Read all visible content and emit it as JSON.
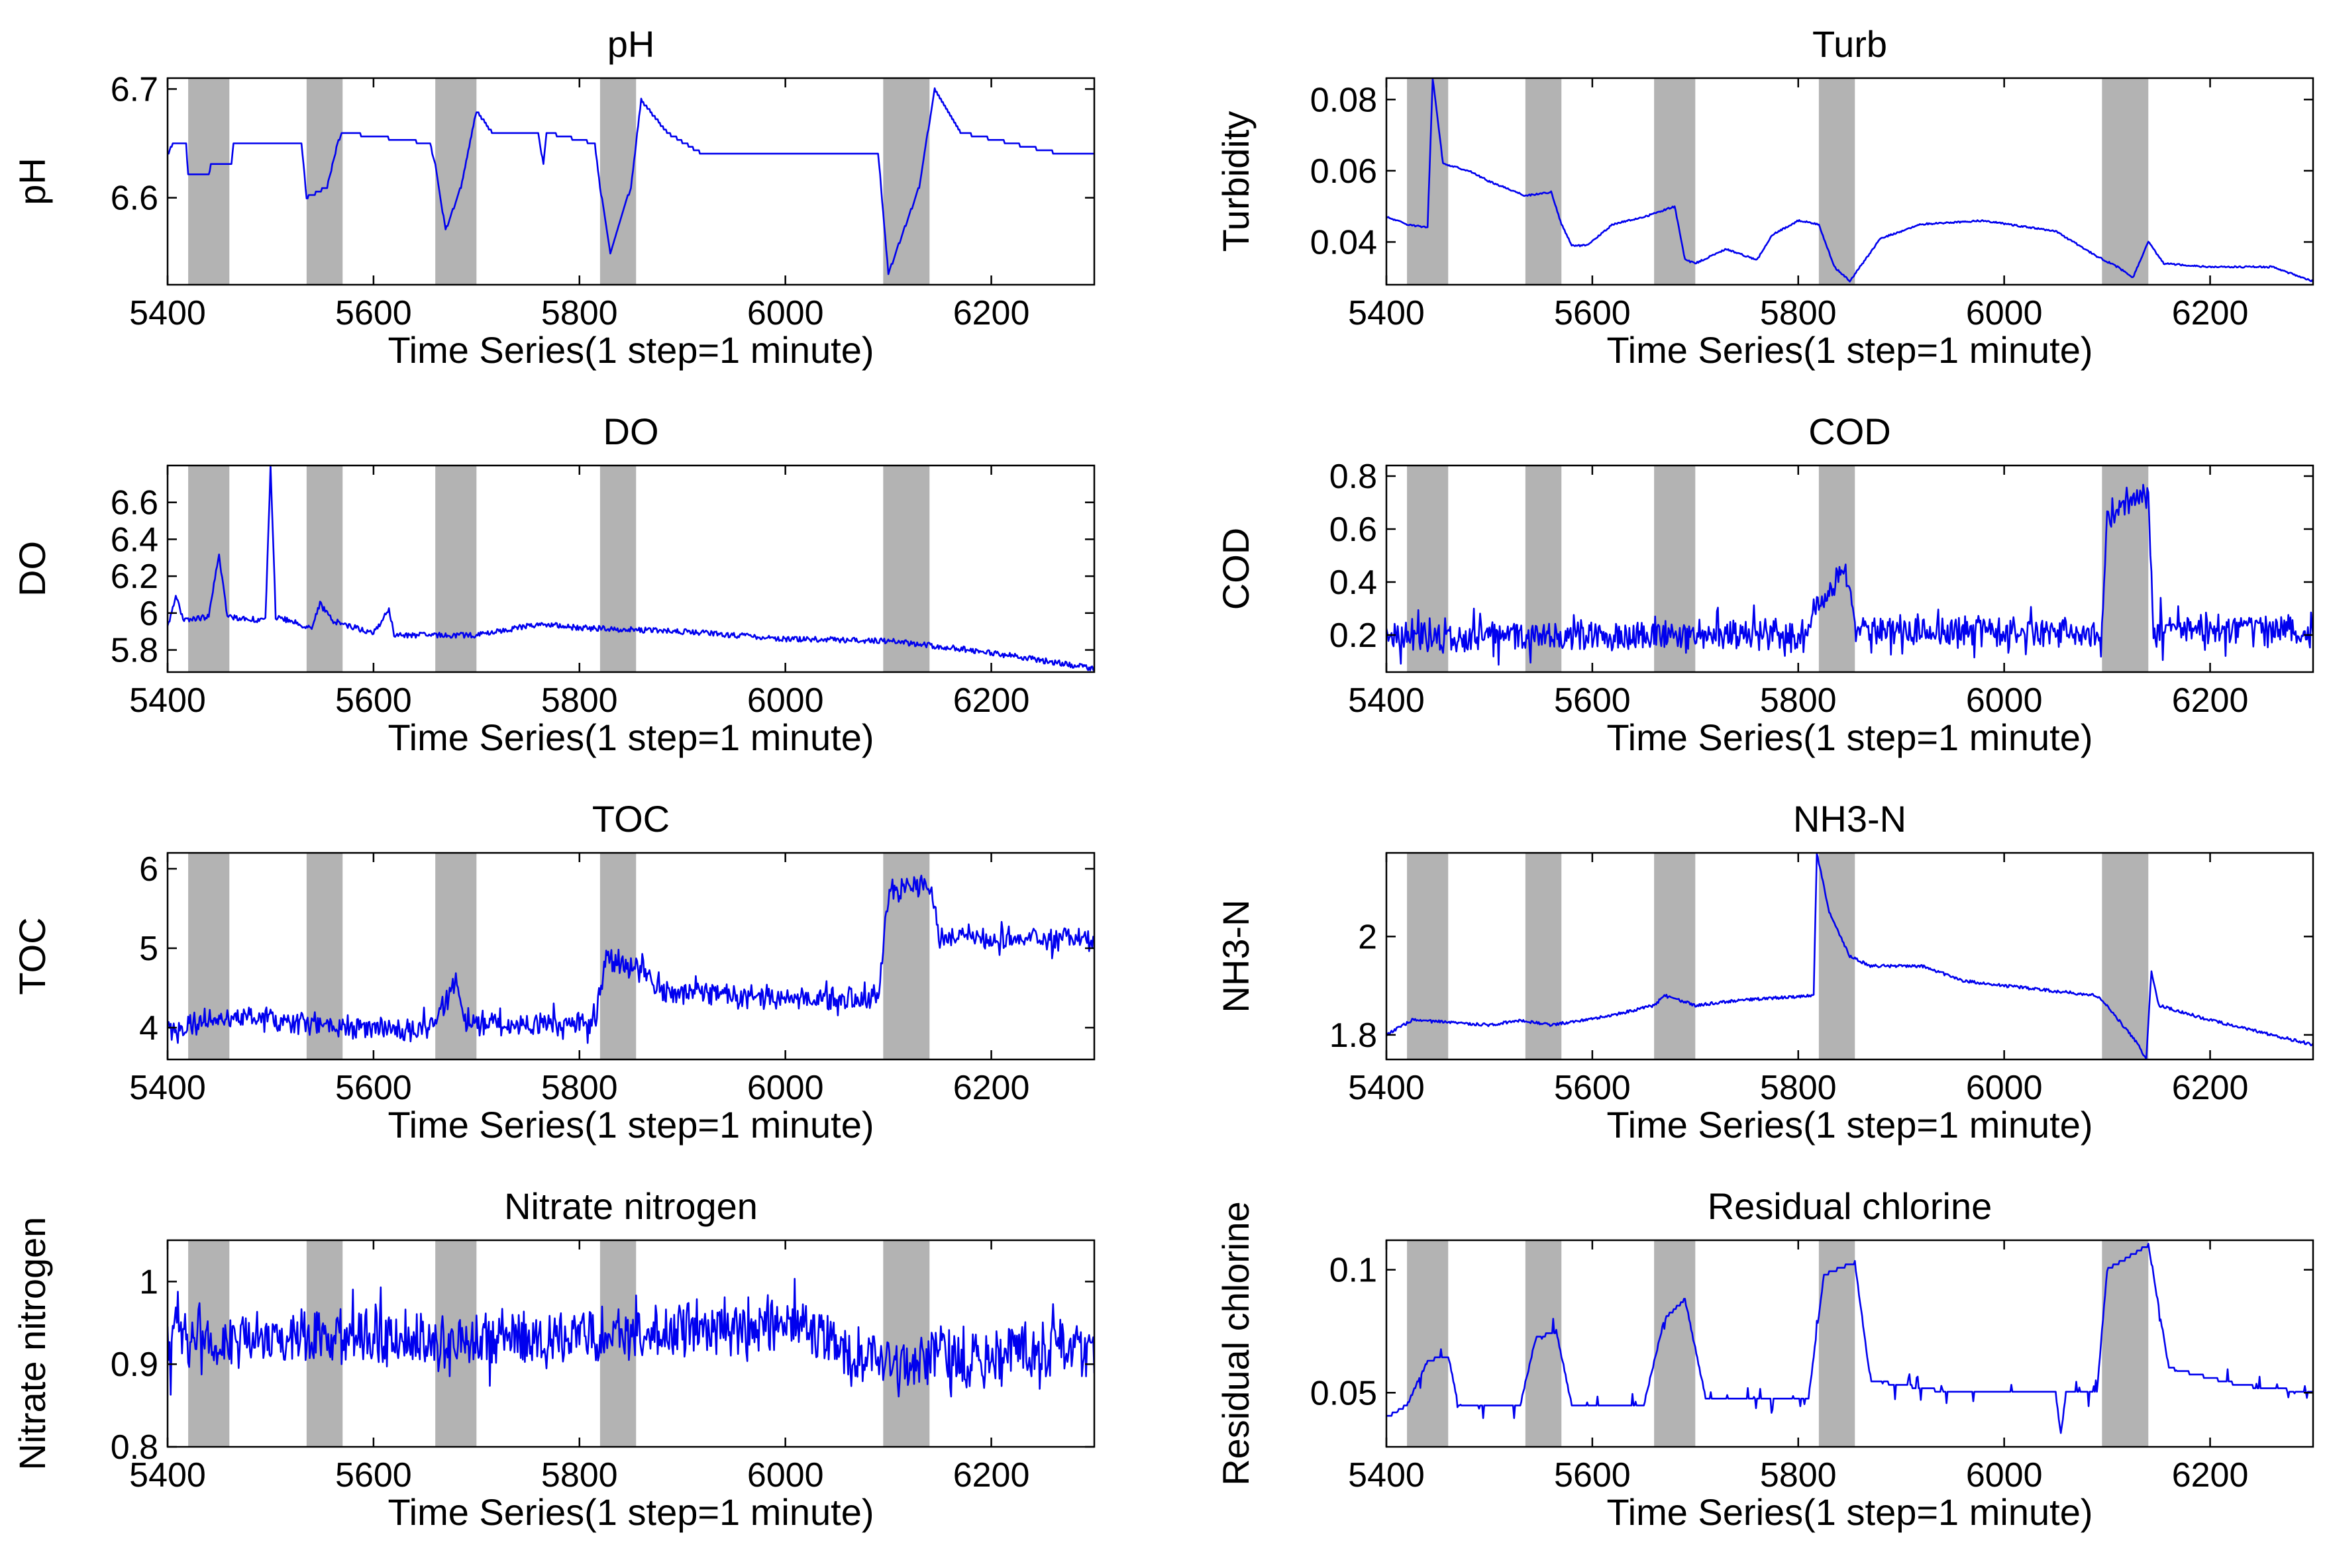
{
  "figure": {
    "line_color": "#0000ee",
    "event_color": "#b3b3b3"
  },
  "chart_data": [
    {
      "type": "line",
      "title": "pH",
      "xlabel": "Time Series(1 step=1 minute)",
      "ylabel": "pH",
      "xlim": [
        5400,
        6300
      ],
      "ylim": [
        6.52,
        6.71
      ],
      "xticks": [
        5400,
        5600,
        5800,
        6000,
        6200
      ],
      "yticks": [
        6.6,
        6.7
      ],
      "event_windows": [
        [
          5420,
          5460
        ],
        [
          5535,
          5570
        ],
        [
          5660,
          5700
        ],
        [
          5820,
          5855
        ],
        [
          6095,
          6140
        ]
      ],
      "shape": "step",
      "anchors": [
        [
          5400,
          6.64
        ],
        [
          5405,
          6.65
        ],
        [
          5418,
          6.65
        ],
        [
          5420,
          6.62
        ],
        [
          5440,
          6.62
        ],
        [
          5442,
          6.63
        ],
        [
          5462,
          6.63
        ],
        [
          5464,
          6.65
        ],
        [
          5530,
          6.65
        ],
        [
          5535,
          6.6
        ],
        [
          5555,
          6.61
        ],
        [
          5565,
          6.65
        ],
        [
          5570,
          6.66
        ],
        [
          5655,
          6.65
        ],
        [
          5660,
          6.63
        ],
        [
          5670,
          6.57
        ],
        [
          5685,
          6.61
        ],
        [
          5700,
          6.68
        ],
        [
          5715,
          6.66
        ],
        [
          5760,
          6.66
        ],
        [
          5765,
          6.63
        ],
        [
          5768,
          6.66
        ],
        [
          5815,
          6.65
        ],
        [
          5820,
          6.61
        ],
        [
          5830,
          6.55
        ],
        [
          5850,
          6.61
        ],
        [
          5860,
          6.69
        ],
        [
          5885,
          6.66
        ],
        [
          5920,
          6.64
        ],
        [
          6090,
          6.64
        ],
        [
          6092,
          6.62
        ],
        [
          6100,
          6.53
        ],
        [
          6130,
          6.61
        ],
        [
          6145,
          6.7
        ],
        [
          6170,
          6.66
        ],
        [
          6220,
          6.65
        ],
        [
          6270,
          6.64
        ],
        [
          6300,
          6.64
        ]
      ]
    },
    {
      "type": "line",
      "title": "Turb",
      "xlabel": "Time Series(1 step=1 minute)",
      "ylabel": "Turbidity",
      "xlim": [
        5400,
        6300
      ],
      "ylim": [
        0.028,
        0.086
      ],
      "xticks": [
        5400,
        5600,
        5800,
        6000,
        6200
      ],
      "yticks": [
        0.04,
        0.06,
        0.08
      ],
      "event_windows": [
        [
          5420,
          5460
        ],
        [
          5535,
          5570
        ],
        [
          5660,
          5700
        ],
        [
          5820,
          5855
        ],
        [
          6095,
          6140
        ]
      ],
      "shape": "smooth",
      "anchors": [
        [
          5400,
          0.047
        ],
        [
          5420,
          0.045
        ],
        [
          5440,
          0.044
        ],
        [
          5445,
          0.086
        ],
        [
          5455,
          0.062
        ],
        [
          5480,
          0.06
        ],
        [
          5500,
          0.057
        ],
        [
          5535,
          0.053
        ],
        [
          5560,
          0.054
        ],
        [
          5570,
          0.045
        ],
        [
          5580,
          0.039
        ],
        [
          5595,
          0.039
        ],
        [
          5620,
          0.045
        ],
        [
          5650,
          0.047
        ],
        [
          5680,
          0.05
        ],
        [
          5690,
          0.035
        ],
        [
          5700,
          0.034
        ],
        [
          5730,
          0.038
        ],
        [
          5760,
          0.035
        ],
        [
          5775,
          0.042
        ],
        [
          5800,
          0.046
        ],
        [
          5820,
          0.045
        ],
        [
          5835,
          0.033
        ],
        [
          5850,
          0.029
        ],
        [
          5880,
          0.041
        ],
        [
          5920,
          0.045
        ],
        [
          5980,
          0.046
        ],
        [
          6050,
          0.043
        ],
        [
          6090,
          0.036
        ],
        [
          6110,
          0.033
        ],
        [
          6125,
          0.03
        ],
        [
          6140,
          0.04
        ],
        [
          6155,
          0.034
        ],
        [
          6200,
          0.033
        ],
        [
          6260,
          0.033
        ],
        [
          6300,
          0.029
        ]
      ]
    },
    {
      "type": "line",
      "title": "DO",
      "xlabel": "Time Series(1 step=1 minute)",
      "ylabel": "DO",
      "xlim": [
        5400,
        6300
      ],
      "ylim": [
        5.68,
        6.8
      ],
      "xticks": [
        5400,
        5600,
        5800,
        6000,
        6200
      ],
      "yticks": [
        5.8,
        6,
        6.2,
        6.4,
        6.6
      ],
      "event_windows": [
        [
          5420,
          5460
        ],
        [
          5535,
          5570
        ],
        [
          5660,
          5700
        ],
        [
          5820,
          5855
        ],
        [
          6095,
          6140
        ]
      ],
      "shape": "smooth",
      "anchors": [
        [
          5400,
          5.92
        ],
        [
          5408,
          6.1
        ],
        [
          5415,
          5.96
        ],
        [
          5440,
          5.98
        ],
        [
          5450,
          6.32
        ],
        [
          5458,
          5.98
        ],
        [
          5495,
          5.96
        ],
        [
          5500,
          6.8
        ],
        [
          5505,
          5.98
        ],
        [
          5540,
          5.92
        ],
        [
          5548,
          6.05
        ],
        [
          5560,
          5.96
        ],
        [
          5600,
          5.89
        ],
        [
          5615,
          6.02
        ],
        [
          5620,
          5.88
        ],
        [
          5700,
          5.88
        ],
        [
          5760,
          5.94
        ],
        [
          5800,
          5.92
        ],
        [
          5900,
          5.9
        ],
        [
          6000,
          5.86
        ],
        [
          6100,
          5.85
        ],
        [
          6180,
          5.8
        ],
        [
          6230,
          5.76
        ],
        [
          6300,
          5.7
        ]
      ],
      "noise": 0.015
    },
    {
      "type": "line",
      "title": "COD",
      "xlabel": "Time Series(1 step=1 minute)",
      "ylabel": "COD",
      "xlim": [
        5400,
        6300
      ],
      "ylim": [
        0.06,
        0.84
      ],
      "xticks": [
        5400,
        5600,
        5800,
        6000,
        6200
      ],
      "yticks": [
        0.2,
        0.4,
        0.6,
        0.8
      ],
      "event_windows": [
        [
          5420,
          5460
        ],
        [
          5535,
          5570
        ],
        [
          5660,
          5700
        ],
        [
          5820,
          5855
        ],
        [
          6095,
          6140
        ]
      ],
      "shape": "noisy",
      "anchors": [
        [
          5400,
          0.2
        ],
        [
          5805,
          0.2
        ],
        [
          5820,
          0.32
        ],
        [
          5845,
          0.44
        ],
        [
          5855,
          0.22
        ],
        [
          6095,
          0.2
        ],
        [
          6100,
          0.66
        ],
        [
          6140,
          0.72
        ],
        [
          6145,
          0.22
        ],
        [
          6300,
          0.21
        ]
      ],
      "noise": 0.05
    },
    {
      "type": "line",
      "title": "TOC",
      "xlabel": "Time Series(1 step=1 minute)",
      "ylabel": "TOC",
      "xlim": [
        5400,
        6300
      ],
      "ylim": [
        3.6,
        6.2
      ],
      "xticks": [
        5400,
        5600,
        5800,
        6000,
        6200
      ],
      "yticks": [
        4,
        5,
        6
      ],
      "event_windows": [
        [
          5420,
          5460
        ],
        [
          5535,
          5570
        ],
        [
          5660,
          5700
        ],
        [
          5820,
          5855
        ],
        [
          6095,
          6140
        ]
      ],
      "shape": "noisy",
      "anchors": [
        [
          5400,
          3.95
        ],
        [
          5450,
          4.15
        ],
        [
          5550,
          4.05
        ],
        [
          5640,
          3.95
        ],
        [
          5660,
          4.05
        ],
        [
          5680,
          4.55
        ],
        [
          5690,
          4.05
        ],
        [
          5815,
          4.05
        ],
        [
          5825,
          4.85
        ],
        [
          5855,
          4.75
        ],
        [
          5880,
          4.45
        ],
        [
          6000,
          4.35
        ],
        [
          6090,
          4.35
        ],
        [
          6100,
          5.7
        ],
        [
          6140,
          5.8
        ],
        [
          6150,
          5.15
        ],
        [
          6300,
          5.1
        ]
      ],
      "noise": 0.12
    },
    {
      "type": "line",
      "title": "NH3-N",
      "xlabel": "Time Series(1 step=1 minute)",
      "ylabel": "NH3-N",
      "xlim": [
        5400,
        6300
      ],
      "ylim": [
        1.75,
        2.17
      ],
      "xticks": [
        5400,
        5600,
        5800,
        6000,
        6200
      ],
      "yticks": [
        1.8,
        2
      ],
      "event_windows": [
        [
          5420,
          5460
        ],
        [
          5535,
          5570
        ],
        [
          5660,
          5700
        ],
        [
          5820,
          5855
        ],
        [
          6095,
          6140
        ]
      ],
      "shape": "smooth",
      "anchors": [
        [
          5400,
          1.8
        ],
        [
          5425,
          1.83
        ],
        [
          5500,
          1.82
        ],
        [
          5530,
          1.83
        ],
        [
          5560,
          1.82
        ],
        [
          5620,
          1.84
        ],
        [
          5660,
          1.86
        ],
        [
          5670,
          1.88
        ],
        [
          5700,
          1.86
        ],
        [
          5740,
          1.87
        ],
        [
          5815,
          1.88
        ],
        [
          5818,
          2.17
        ],
        [
          5830,
          2.05
        ],
        [
          5850,
          1.96
        ],
        [
          5870,
          1.94
        ],
        [
          5920,
          1.94
        ],
        [
          5960,
          1.91
        ],
        [
          6000,
          1.9
        ],
        [
          6090,
          1.88
        ],
        [
          6100,
          1.86
        ],
        [
          6130,
          1.78
        ],
        [
          6138,
          1.75
        ],
        [
          6143,
          1.93
        ],
        [
          6150,
          1.86
        ],
        [
          6200,
          1.83
        ],
        [
          6260,
          1.8
        ],
        [
          6300,
          1.78
        ]
      ],
      "noise": 0.003
    },
    {
      "type": "line",
      "title": "Nitrate nitrogen",
      "xlabel": "Time Series(1 step=1 minute)",
      "ylabel": "Nitrate nitrogen",
      "xlim": [
        5400,
        6300
      ],
      "ylim": [
        0.8,
        1.05
      ],
      "xticks": [
        5400,
        5600,
        5800,
        6000,
        6200
      ],
      "yticks": [
        0.8,
        0.9,
        1
      ],
      "event_windows": [
        [
          5420,
          5460
        ],
        [
          5535,
          5570
        ],
        [
          5660,
          5700
        ],
        [
          5820,
          5855
        ],
        [
          6095,
          6140
        ]
      ],
      "shape": "noisy",
      "anchors": [
        [
          5400,
          0.93
        ],
        [
          5800,
          0.93
        ],
        [
          6000,
          0.95
        ],
        [
          6100,
          0.9
        ],
        [
          6300,
          0.92
        ]
      ],
      "noise": 0.028
    },
    {
      "type": "line",
      "title": "Residual chlorine",
      "xlabel": "Time Series(1 step=1 minute)",
      "ylabel": "Residual chlorine",
      "xlim": [
        5400,
        6300
      ],
      "ylim": [
        0.028,
        0.112
      ],
      "xticks": [
        5400,
        5600,
        5800,
        6000,
        6200
      ],
      "yticks": [
        0.05,
        0.1
      ],
      "event_windows": [
        [
          5420,
          5460
        ],
        [
          5535,
          5570
        ],
        [
          5660,
          5700
        ],
        [
          5820,
          5855
        ],
        [
          6095,
          6140
        ]
      ],
      "shape": "step",
      "anchors": [
        [
          5400,
          0.04
        ],
        [
          5420,
          0.045
        ],
        [
          5440,
          0.063
        ],
        [
          5460,
          0.065
        ],
        [
          5470,
          0.045
        ],
        [
          5530,
          0.045
        ],
        [
          5545,
          0.072
        ],
        [
          5565,
          0.075
        ],
        [
          5580,
          0.045
        ],
        [
          5650,
          0.045
        ],
        [
          5670,
          0.08
        ],
        [
          5690,
          0.088
        ],
        [
          5710,
          0.048
        ],
        [
          5810,
          0.048
        ],
        [
          5825,
          0.098
        ],
        [
          5855,
          0.103
        ],
        [
          5870,
          0.055
        ],
        [
          5950,
          0.05
        ],
        [
          6050,
          0.05
        ],
        [
          6055,
          0.033
        ],
        [
          6060,
          0.05
        ],
        [
          6090,
          0.05
        ],
        [
          6100,
          0.1
        ],
        [
          6140,
          0.11
        ],
        [
          6160,
          0.06
        ],
        [
          6230,
          0.053
        ],
        [
          6300,
          0.05
        ]
      ],
      "noise": 0.002
    }
  ]
}
